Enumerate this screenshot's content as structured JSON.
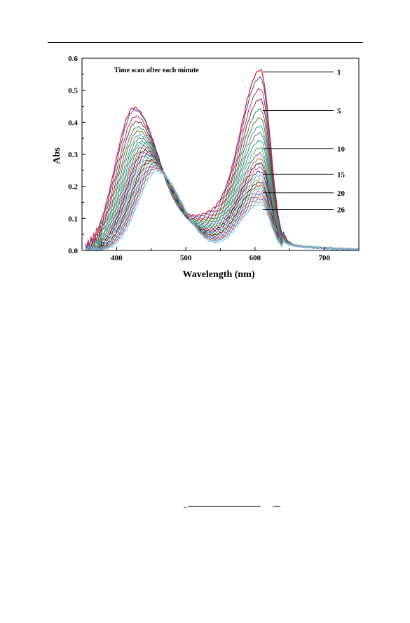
{
  "chart_data": {
    "type": "line",
    "annotation": "Time scan after each minute",
    "xlabel": "Wavelength (nm)",
    "ylabel": "Abs",
    "xlim": [
      350,
      750
    ],
    "ylim": [
      0,
      0.6
    ],
    "x_ticks": [
      400,
      500,
      600,
      700
    ],
    "y_ticks": [
      0.0,
      0.1,
      0.2,
      0.3,
      0.4,
      0.5,
      0.6
    ],
    "grid": false,
    "num_scans": 26,
    "scan_colors": [
      "#e8312f",
      "#3344cc",
      "#b03050",
      "#8b1a2b",
      "#2f8a3a",
      "#7a6a2a",
      "#3aa0d0",
      "#6a6a6a",
      "#20a0a0",
      "#30c040",
      "#8844aa",
      "#aa7733",
      "#1a1a1a",
      "#cc44aa",
      "#224488",
      "#60b0e0",
      "#a0a040",
      "#2a2a2a",
      "#884422",
      "#40c0c0",
      "#c060c0",
      "#606090",
      "#e07050",
      "#5080c0",
      "#b0b0b0",
      "#70d0e0"
    ],
    "series_by_scan": [
      {
        "scan": 1,
        "band1_peak": 0.445,
        "band2_peak": 0.558,
        "min_530": 0.118
      },
      {
        "scan": 2,
        "band1_peak": 0.438,
        "band2_peak": 0.535,
        "min_530": 0.112
      },
      {
        "scan": 3,
        "band1_peak": 0.418,
        "band2_peak": 0.5,
        "min_530": 0.104
      },
      {
        "scan": 4,
        "band1_peak": 0.402,
        "band2_peak": 0.468,
        "min_530": 0.098
      },
      {
        "scan": 5,
        "band1_peak": 0.385,
        "band2_peak": 0.437,
        "min_530": 0.092
      },
      {
        "scan": 6,
        "band1_peak": 0.372,
        "band2_peak": 0.41,
        "min_530": 0.087
      },
      {
        "scan": 7,
        "band1_peak": 0.36,
        "band2_peak": 0.385,
        "min_530": 0.082
      },
      {
        "scan": 8,
        "band1_peak": 0.35,
        "band2_peak": 0.364,
        "min_530": 0.078
      },
      {
        "scan": 9,
        "band1_peak": 0.34,
        "band2_peak": 0.34,
        "min_530": 0.074
      },
      {
        "scan": 10,
        "band1_peak": 0.333,
        "band2_peak": 0.318,
        "min_530": 0.071
      },
      {
        "scan": 11,
        "band1_peak": 0.325,
        "band2_peak": 0.3,
        "min_530": 0.068
      },
      {
        "scan": 12,
        "band1_peak": 0.318,
        "band2_peak": 0.284,
        "min_530": 0.065
      },
      {
        "scan": 13,
        "band1_peak": 0.311,
        "band2_peak": 0.27,
        "min_530": 0.062
      },
      {
        "scan": 14,
        "band1_peak": 0.304,
        "band2_peak": 0.257,
        "min_530": 0.06
      },
      {
        "scan": 15,
        "band1_peak": 0.298,
        "band2_peak": 0.245,
        "min_530": 0.057
      },
      {
        "scan": 16,
        "band1_peak": 0.292,
        "band2_peak": 0.233,
        "min_530": 0.055
      },
      {
        "scan": 17,
        "band1_peak": 0.286,
        "band2_peak": 0.222,
        "min_530": 0.053
      },
      {
        "scan": 18,
        "band1_peak": 0.281,
        "band2_peak": 0.212,
        "min_530": 0.051
      },
      {
        "scan": 19,
        "band1_peak": 0.276,
        "band2_peak": 0.202,
        "min_530": 0.049
      },
      {
        "scan": 20,
        "band1_peak": 0.271,
        "band2_peak": 0.193,
        "min_530": 0.047
      },
      {
        "scan": 21,
        "band1_peak": 0.266,
        "band2_peak": 0.184,
        "min_530": 0.045
      },
      {
        "scan": 22,
        "band1_peak": 0.262,
        "band2_peak": 0.176,
        "min_530": 0.043
      },
      {
        "scan": 23,
        "band1_peak": 0.258,
        "band2_peak": 0.168,
        "min_530": 0.041
      },
      {
        "scan": 24,
        "band1_peak": 0.254,
        "band2_peak": 0.16,
        "min_530": 0.039
      },
      {
        "scan": 25,
        "band1_peak": 0.25,
        "band2_peak": 0.152,
        "min_530": 0.037
      },
      {
        "scan": 26,
        "band1_peak": 0.246,
        "band2_peak": 0.145,
        "min_530": 0.035
      }
    ],
    "band_positions_nm": {
      "band1_start": 425,
      "band1_end": 458,
      "band2": 608,
      "min": 530
    },
    "callouts": [
      {
        "label": "1",
        "scan": 1,
        "y": 0.557
      },
      {
        "label": "5",
        "scan": 5,
        "y": 0.437
      },
      {
        "label": "10",
        "scan": 10,
        "y": 0.318
      },
      {
        "label": "15",
        "scan": 15,
        "y": 0.238
      },
      {
        "label": "20",
        "scan": 20,
        "y": 0.18
      },
      {
        "label": "26",
        "scan": 26,
        "y": 0.128
      }
    ]
  }
}
